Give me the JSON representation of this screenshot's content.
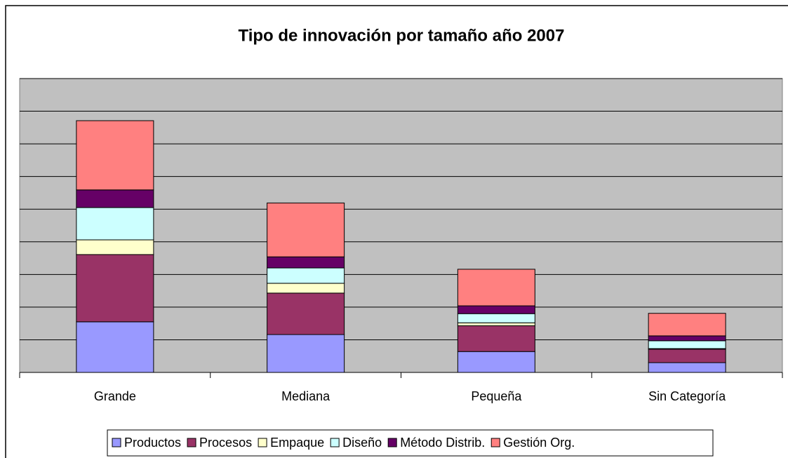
{
  "chart_data": {
    "type": "stacked_bar",
    "title": "Tipo de innovación por tamaño año 2007",
    "categories": [
      "Grande",
      "Mediana",
      "Pequeña",
      "Sin Categoría"
    ],
    "series": [
      {
        "name": "Productos",
        "color": "#9999ff",
        "values": [
          1.55,
          1.16,
          0.64,
          0.3
        ]
      },
      {
        "name": "Procesos",
        "color": "#993366",
        "values": [
          2.06,
          1.27,
          0.79,
          0.41
        ]
      },
      {
        "name": "Empaque",
        "color": "#ffffcc",
        "values": [
          0.45,
          0.3,
          0.09,
          0.02
        ]
      },
      {
        "name": "Diseño",
        "color": "#ccffff",
        "values": [
          0.99,
          0.47,
          0.28,
          0.24
        ]
      },
      {
        "name": "Método Distrib.",
        "color": "#660066",
        "values": [
          0.54,
          0.34,
          0.24,
          0.15
        ]
      },
      {
        "name": "Gestión Org.",
        "color": "#ff8080",
        "values": [
          2.12,
          1.65,
          1.12,
          0.69
        ]
      }
    ],
    "ylim": [
      0,
      9
    ],
    "yticks": [
      0,
      1,
      2,
      3,
      4,
      5,
      6,
      7,
      8,
      9
    ],
    "grid": true,
    "legend": "bottom"
  }
}
